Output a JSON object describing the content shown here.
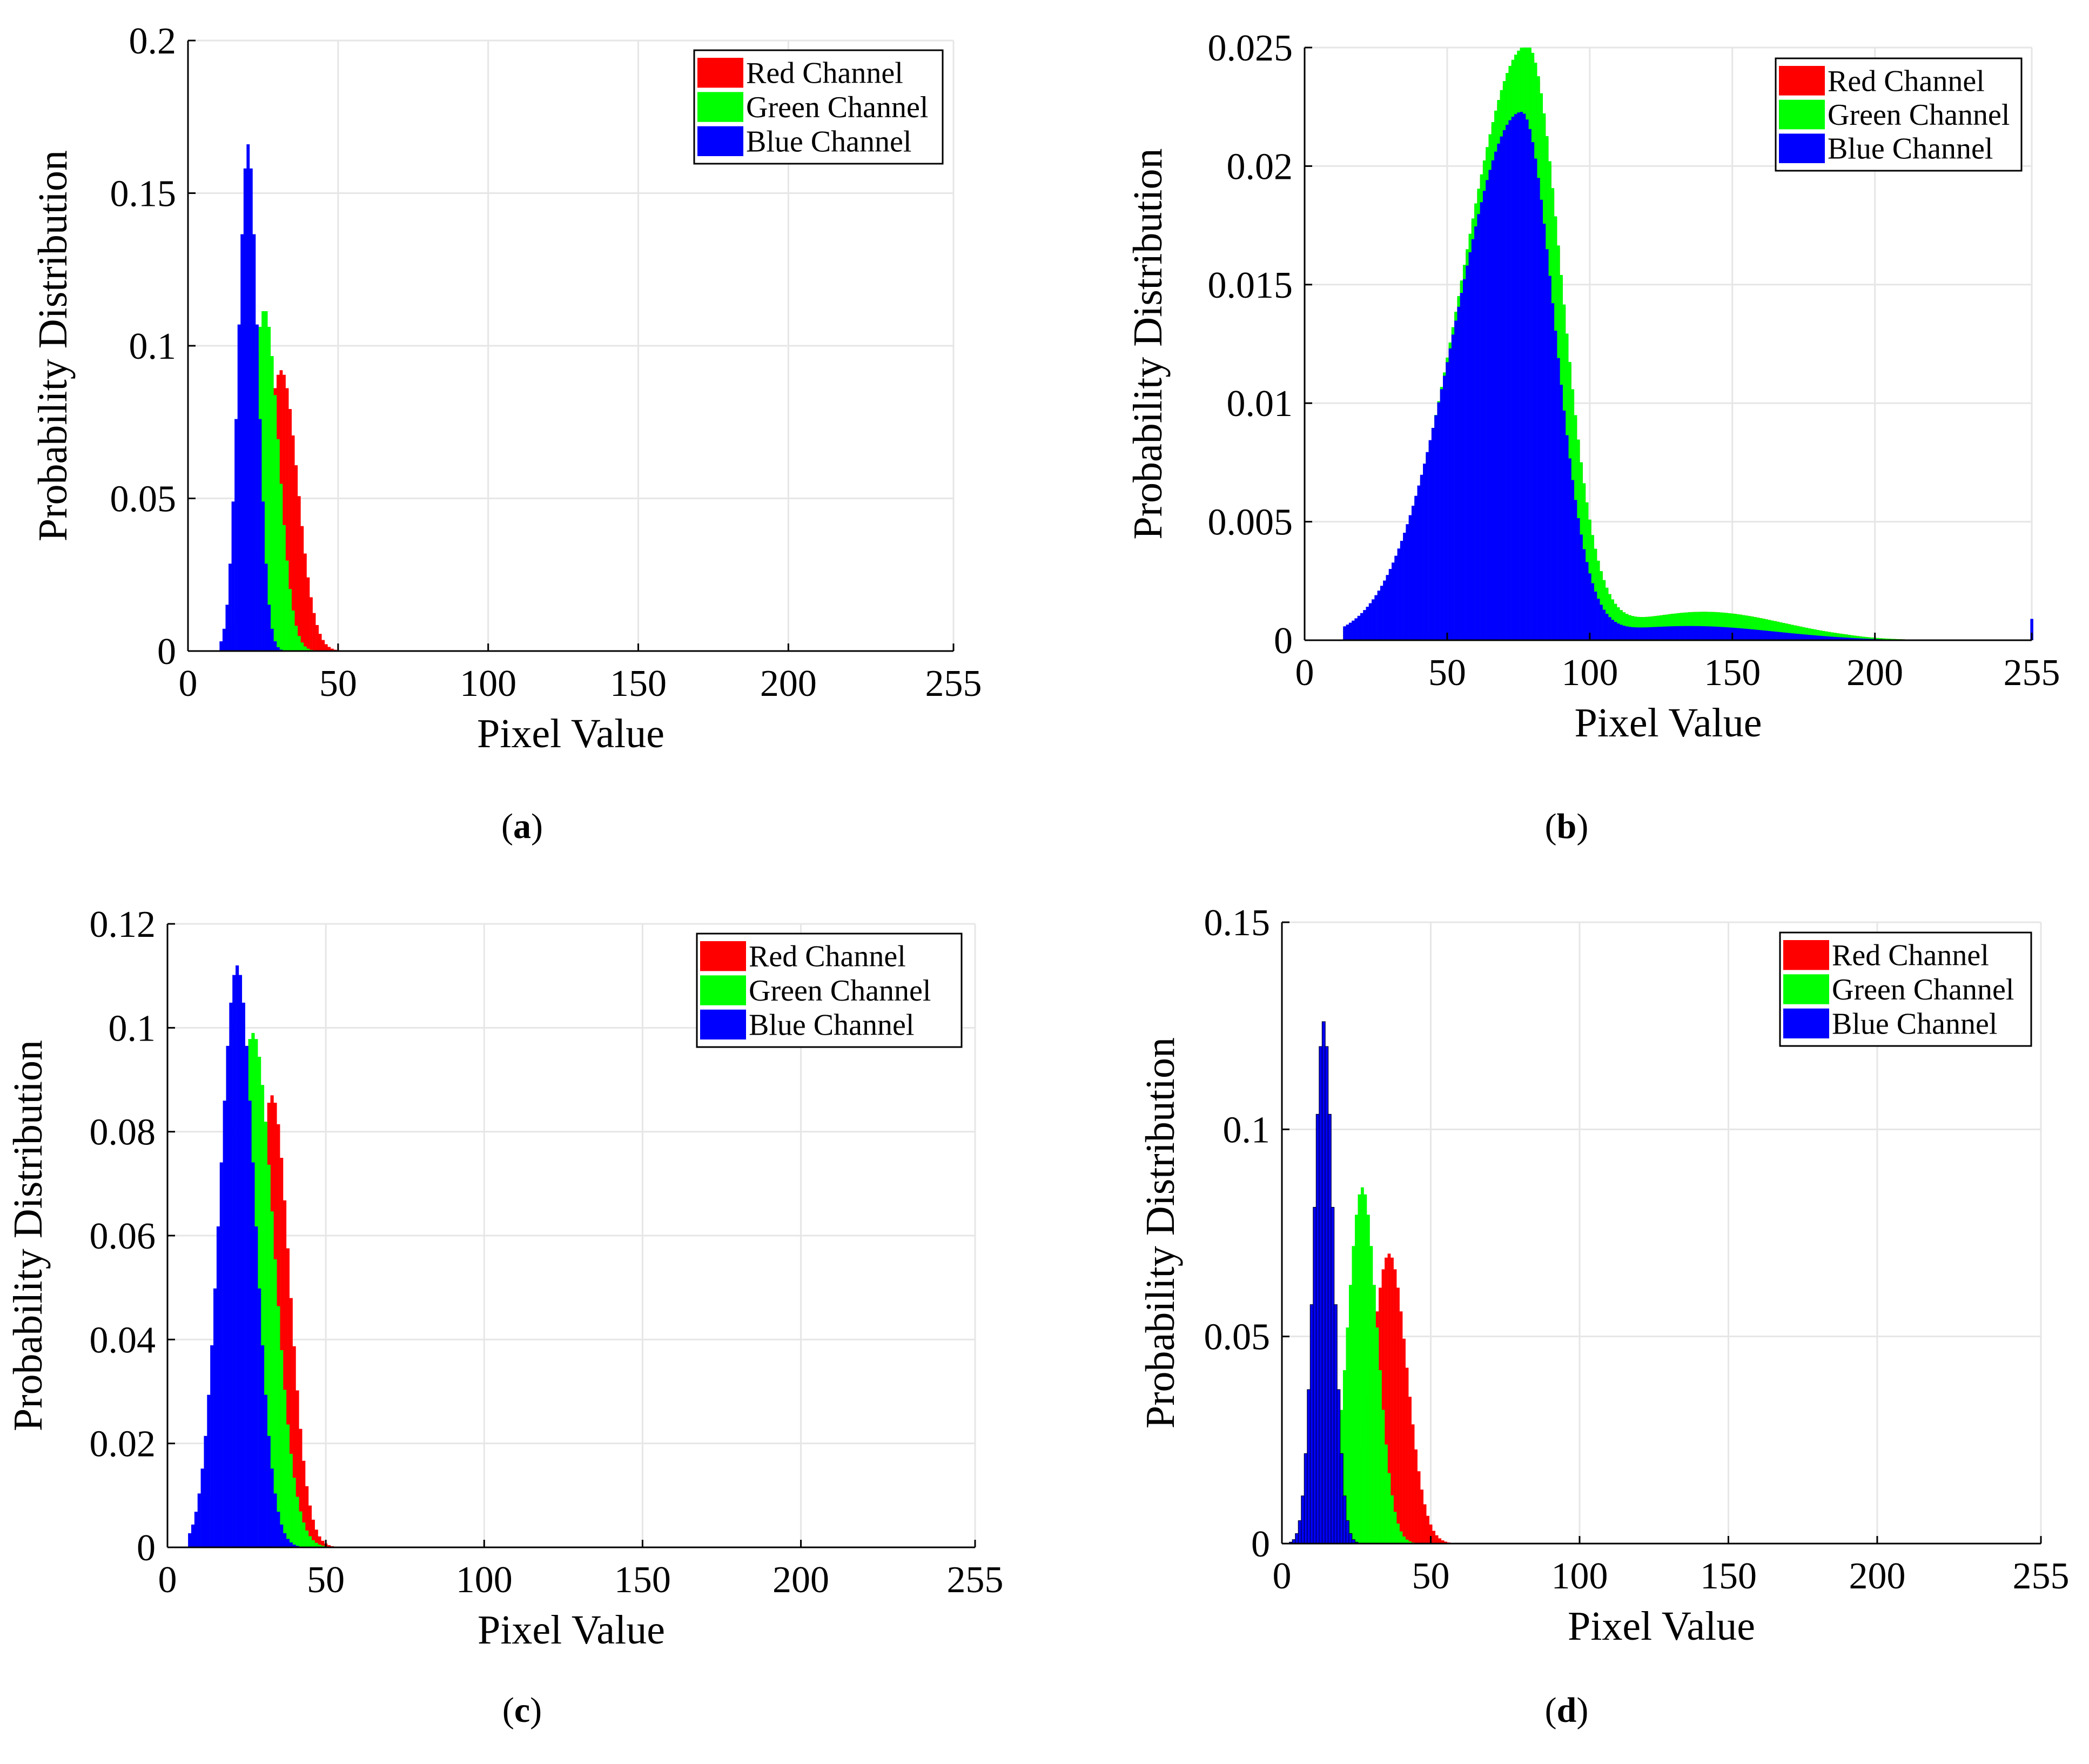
{
  "chart_data": [
    {
      "id": "a",
      "type": "histogram",
      "caption_label": "a",
      "xlabel": "Pixel Value",
      "ylabel": "Probability Distribution",
      "xlim": [
        0,
        255
      ],
      "ylim": [
        0,
        0.2
      ],
      "xticks": [
        0,
        50,
        100,
        150,
        200,
        255
      ],
      "yticks": [
        0,
        0.05,
        0.1,
        0.15,
        0.2
      ],
      "ytick_labels": [
        "0",
        "0.05",
        "0.1",
        "0.15",
        "0.2"
      ],
      "grid": true,
      "legend_position": "top-right",
      "series": [
        {
          "name": "Red Channel",
          "color": "#ff0000",
          "dist": "normal",
          "mu": 31,
          "sigma": 5.5,
          "peak": 0.092,
          "min": 17,
          "max": 70
        },
        {
          "name": "Green Channel",
          "color": "#00ff00",
          "dist": "normal",
          "mu": 25.5,
          "sigma": 4.6,
          "peak": 0.112,
          "min": 14,
          "max": 60
        },
        {
          "name": "Blue Channel",
          "color": "#0000ff",
          "dist": "normal",
          "mu": 20,
          "sigma": 3.2,
          "peak": 0.166,
          "min": 11,
          "max": 40
        }
      ]
    },
    {
      "id": "b",
      "type": "histogram",
      "caption_label": "b",
      "xlabel": "Pixel Value",
      "ylabel": "Probability Distribution",
      "xlim": [
        0,
        255
      ],
      "ylim": [
        0,
        0.025
      ],
      "xticks": [
        0,
        50,
        100,
        150,
        200,
        255
      ],
      "yticks": [
        0,
        0.005,
        0.01,
        0.015,
        0.02,
        0.025
      ],
      "ytick_labels": [
        "0",
        "0.005",
        "0.01",
        "0.015",
        "0.02",
        "0.025"
      ],
      "grid": true,
      "legend_position": "top-right",
      "series": [
        {
          "name": "Red Channel",
          "color": "#ff0000",
          "dist": "skew",
          "mu": 78,
          "sigma_left": 23,
          "sigma_right": 12,
          "peak": 0.0248,
          "tail_mu": 140,
          "tail_sigma": 28,
          "tail_peak": 0.0012,
          "min": 14,
          "max": 255
        },
        {
          "name": "Green Channel",
          "color": "#00ff00",
          "dist": "skew",
          "mu": 78,
          "sigma_left": 23,
          "sigma_right": 12,
          "peak": 0.025,
          "tail_mu": 140,
          "tail_sigma": 28,
          "tail_peak": 0.0012,
          "min": 14,
          "max": 255
        },
        {
          "name": "Blue Channel",
          "color": "#0000ff",
          "dist": "skew",
          "mu": 76,
          "sigma_left": 23,
          "sigma_right": 11.5,
          "peak": 0.0222,
          "tail_mu": 135,
          "tail_sigma": 30,
          "tail_peak": 0.0006,
          "min": 14,
          "max": 255,
          "spike_x": 255,
          "spike_y": 0.0009
        }
      ]
    },
    {
      "id": "c",
      "type": "histogram",
      "caption_label": "c",
      "xlabel": "Pixel Value",
      "ylabel": "Probability Distribution",
      "xlim": [
        0,
        255
      ],
      "ylim": [
        0,
        0.12
      ],
      "xticks": [
        0,
        50,
        100,
        150,
        200,
        255
      ],
      "yticks": [
        0,
        0.02,
        0.04,
        0.06,
        0.08,
        0.1,
        0.12
      ],
      "ytick_labels": [
        "0",
        "0.02",
        "0.04",
        "0.06",
        "0.08",
        "0.1",
        "0.12"
      ],
      "grid": true,
      "legend_position": "top-right",
      "series": [
        {
          "name": "Red Channel",
          "color": "#ff0000",
          "dist": "normal",
          "mu": 33,
          "sigma": 5.5,
          "peak": 0.087,
          "min": 15,
          "max": 80
        },
        {
          "name": "Green Channel",
          "color": "#00ff00",
          "dist": "normal",
          "mu": 27,
          "sigma": 6.5,
          "peak": 0.099,
          "min": 10,
          "max": 70
        },
        {
          "name": "Blue Channel",
          "color": "#0000ff",
          "dist": "normal",
          "mu": 22,
          "sigma": 5.5,
          "peak": 0.112,
          "min": 7,
          "max": 50
        }
      ]
    },
    {
      "id": "d",
      "type": "histogram",
      "caption_label": "d",
      "xlabel": "Pixel Value",
      "ylabel": "Probability Distribution",
      "xlim": [
        0,
        255
      ],
      "ylim": [
        0,
        0.15
      ],
      "xticks": [
        0,
        50,
        100,
        150,
        200,
        255
      ],
      "yticks": [
        0,
        0.05,
        0.1,
        0.15
      ],
      "ytick_labels": [
        "0",
        "0.05",
        "0.1",
        "0.15"
      ],
      "grid": true,
      "legend_position": "top-right",
      "series": [
        {
          "name": "Red Channel",
          "color": "#ff0000",
          "dist": "normal",
          "mu": 36,
          "sigma": 6.0,
          "peak": 0.07,
          "min": 18,
          "max": 90
        },
        {
          "name": "Green Channel",
          "color": "#00ff00",
          "dist": "normal",
          "mu": 27,
          "sigma": 5.0,
          "peak": 0.086,
          "min": 10,
          "max": 70
        },
        {
          "name": "Blue Channel",
          "color": "#0000ff",
          "dist": "normal",
          "mu": 14,
          "sigma": 3.2,
          "peak": 0.126,
          "min": 3,
          "max": 30
        }
      ]
    }
  ]
}
